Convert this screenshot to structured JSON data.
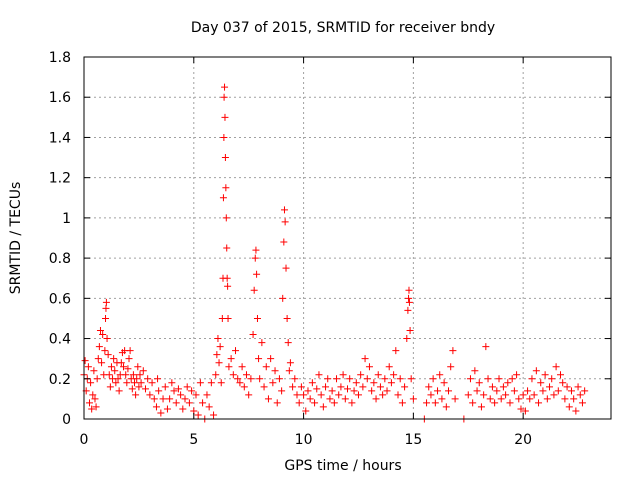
{
  "chart_data": {
    "type": "scatter",
    "title": "Day 037 of 2015, SRMTID for receiver bndy",
    "xlabel": "GPS time / hours",
    "ylabel": "SRMTID / TECUs",
    "xlim": [
      0,
      24
    ],
    "ylim": [
      0,
      1.8
    ],
    "xticks": [
      0,
      5,
      10,
      15,
      20
    ],
    "xtick_labels": [
      "0",
      "5",
      "10",
      "15",
      "20"
    ],
    "yticks": [
      0,
      0.2,
      0.4,
      0.6,
      0.8,
      1,
      1.2,
      1.4,
      1.6,
      1.8
    ],
    "ytick_labels": [
      "0",
      "0.2",
      "0.4",
      "0.6",
      "0.8",
      "1",
      "1.2",
      "1.4",
      "1.6",
      "1.8"
    ],
    "grid": true,
    "marker": "plus",
    "color": "#ff0000",
    "x_coverage_hours": [
      0,
      22.8
    ],
    "series": [
      {
        "name": "SRMTID",
        "points": [
          [
            0.0,
            0.22
          ],
          [
            0.05,
            0.29
          ],
          [
            0.1,
            0.14
          ],
          [
            0.15,
            0.2
          ],
          [
            0.2,
            0.26
          ],
          [
            0.25,
            0.08
          ],
          [
            0.3,
            0.18
          ],
          [
            0.35,
            0.05
          ],
          [
            0.4,
            0.12
          ],
          [
            0.45,
            0.24
          ],
          [
            0.5,
            0.1
          ],
          [
            0.55,
            0.06
          ],
          [
            0.6,
            0.2
          ],
          [
            0.65,
            0.3
          ],
          [
            0.7,
            0.36
          ],
          [
            0.75,
            0.44
          ],
          [
            0.8,
            0.28
          ],
          [
            0.85,
            0.42
          ],
          [
            0.9,
            0.22
          ],
          [
            0.95,
            0.34
          ],
          [
            0.98,
            0.5
          ],
          [
            1.0,
            0.55
          ],
          [
            1.02,
            0.58
          ],
          [
            1.05,
            0.4
          ],
          [
            1.1,
            0.32
          ],
          [
            1.15,
            0.22
          ],
          [
            1.2,
            0.16
          ],
          [
            1.25,
            0.26
          ],
          [
            1.3,
            0.2
          ],
          [
            1.35,
            0.3
          ],
          [
            1.4,
            0.24
          ],
          [
            1.45,
            0.18
          ],
          [
            1.5,
            0.28
          ],
          [
            1.55,
            0.2
          ],
          [
            1.6,
            0.14
          ],
          [
            1.65,
            0.22
          ],
          [
            1.7,
            0.28
          ],
          [
            1.75,
            0.33
          ],
          [
            1.8,
            0.26
          ],
          [
            1.85,
            0.34
          ],
          [
            1.9,
            0.22
          ],
          [
            1.95,
            0.18
          ],
          [
            2.0,
            0.25
          ],
          [
            2.05,
            0.3
          ],
          [
            2.1,
            0.34
          ],
          [
            2.15,
            0.2
          ],
          [
            2.2,
            0.15
          ],
          [
            2.25,
            0.22
          ],
          [
            2.3,
            0.18
          ],
          [
            2.35,
            0.12
          ],
          [
            2.4,
            0.2
          ],
          [
            2.45,
            0.26
          ],
          [
            2.5,
            0.16
          ],
          [
            2.55,
            0.22
          ],
          [
            2.6,
            0.18
          ],
          [
            2.7,
            0.24
          ],
          [
            2.8,
            0.15
          ],
          [
            2.9,
            0.2
          ],
          [
            3.0,
            0.12
          ],
          [
            3.1,
            0.18
          ],
          [
            3.2,
            0.1
          ],
          [
            3.3,
            0.06
          ],
          [
            3.35,
            0.2
          ],
          [
            3.4,
            0.14
          ],
          [
            3.5,
            0.03
          ],
          [
            3.6,
            0.1
          ],
          [
            3.7,
            0.16
          ],
          [
            3.8,
            0.05
          ],
          [
            3.9,
            0.1
          ],
          [
            4.0,
            0.18
          ],
          [
            4.1,
            0.14
          ],
          [
            4.2,
            0.08
          ],
          [
            4.3,
            0.15
          ],
          [
            4.4,
            0.12
          ],
          [
            4.5,
            0.05
          ],
          [
            4.6,
            0.1
          ],
          [
            4.7,
            0.16
          ],
          [
            4.8,
            0.08
          ],
          [
            4.9,
            0.14
          ],
          [
            5.0,
            0.04
          ],
          [
            5.1,
            0.12
          ],
          [
            5.2,
            0.02
          ],
          [
            5.3,
            0.18
          ],
          [
            5.4,
            0.08
          ],
          [
            5.5,
            0.0
          ],
          [
            5.6,
            0.12
          ],
          [
            5.7,
            0.06
          ],
          [
            5.8,
            0.18
          ],
          [
            5.9,
            0.02
          ],
          [
            6.0,
            0.22
          ],
          [
            6.05,
            0.32
          ],
          [
            6.1,
            0.4
          ],
          [
            6.15,
            0.28
          ],
          [
            6.2,
            0.36
          ],
          [
            6.25,
            0.18
          ],
          [
            6.3,
            0.5
          ],
          [
            6.33,
            0.7
          ],
          [
            6.35,
            1.1
          ],
          [
            6.37,
            1.4
          ],
          [
            6.38,
            1.6
          ],
          [
            6.4,
            1.65
          ],
          [
            6.42,
            1.5
          ],
          [
            6.44,
            1.3
          ],
          [
            6.46,
            1.15
          ],
          [
            6.48,
            1.0
          ],
          [
            6.5,
            0.85
          ],
          [
            6.52,
            0.7
          ],
          [
            6.54,
            0.66
          ],
          [
            6.56,
            0.5
          ],
          [
            6.6,
            0.26
          ],
          [
            6.7,
            0.3
          ],
          [
            6.8,
            0.22
          ],
          [
            6.9,
            0.34
          ],
          [
            7.0,
            0.2
          ],
          [
            7.1,
            0.18
          ],
          [
            7.2,
            0.26
          ],
          [
            7.3,
            0.16
          ],
          [
            7.4,
            0.22
          ],
          [
            7.5,
            0.12
          ],
          [
            7.6,
            0.2
          ],
          [
            7.7,
            0.42
          ],
          [
            7.75,
            0.64
          ],
          [
            7.8,
            0.8
          ],
          [
            7.83,
            0.84
          ],
          [
            7.86,
            0.72
          ],
          [
            7.9,
            0.5
          ],
          [
            7.95,
            0.3
          ],
          [
            8.0,
            0.2
          ],
          [
            8.1,
            0.38
          ],
          [
            8.2,
            0.16
          ],
          [
            8.3,
            0.26
          ],
          [
            8.4,
            0.1
          ],
          [
            8.5,
            0.3
          ],
          [
            8.6,
            0.18
          ],
          [
            8.7,
            0.24
          ],
          [
            8.8,
            0.08
          ],
          [
            8.9,
            0.2
          ],
          [
            9.0,
            0.14
          ],
          [
            9.05,
            0.6
          ],
          [
            9.1,
            0.88
          ],
          [
            9.13,
            1.04
          ],
          [
            9.16,
            0.98
          ],
          [
            9.2,
            0.75
          ],
          [
            9.25,
            0.5
          ],
          [
            9.3,
            0.38
          ],
          [
            9.35,
            0.24
          ],
          [
            9.4,
            0.28
          ],
          [
            9.5,
            0.16
          ],
          [
            9.6,
            0.2
          ],
          [
            9.7,
            0.12
          ],
          [
            9.8,
            0.08
          ],
          [
            9.9,
            0.16
          ],
          [
            10.0,
            0.12
          ],
          [
            10.1,
            0.04
          ],
          [
            10.2,
            0.14
          ],
          [
            10.3,
            0.1
          ],
          [
            10.4,
            0.18
          ],
          [
            10.5,
            0.08
          ],
          [
            10.6,
            0.15
          ],
          [
            10.7,
            0.22
          ],
          [
            10.8,
            0.12
          ],
          [
            10.9,
            0.06
          ],
          [
            11.0,
            0.16
          ],
          [
            11.1,
            0.2
          ],
          [
            11.2,
            0.1
          ],
          [
            11.3,
            0.14
          ],
          [
            11.4,
            0.08
          ],
          [
            11.5,
            0.2
          ],
          [
            11.6,
            0.12
          ],
          [
            11.7,
            0.16
          ],
          [
            11.8,
            0.22
          ],
          [
            11.9,
            0.1
          ],
          [
            12.0,
            0.15
          ],
          [
            12.1,
            0.2
          ],
          [
            12.2,
            0.08
          ],
          [
            12.3,
            0.14
          ],
          [
            12.4,
            0.18
          ],
          [
            12.5,
            0.12
          ],
          [
            12.6,
            0.22
          ],
          [
            12.7,
            0.16
          ],
          [
            12.8,
            0.3
          ],
          [
            12.9,
            0.2
          ],
          [
            13.0,
            0.26
          ],
          [
            13.1,
            0.14
          ],
          [
            13.2,
            0.18
          ],
          [
            13.3,
            0.1
          ],
          [
            13.4,
            0.22
          ],
          [
            13.5,
            0.16
          ],
          [
            13.6,
            0.12
          ],
          [
            13.7,
            0.2
          ],
          [
            13.8,
            0.14
          ],
          [
            13.9,
            0.26
          ],
          [
            14.0,
            0.18
          ],
          [
            14.1,
            0.22
          ],
          [
            14.2,
            0.34
          ],
          [
            14.3,
            0.12
          ],
          [
            14.4,
            0.2
          ],
          [
            14.5,
            0.08
          ],
          [
            14.6,
            0.16
          ],
          [
            14.7,
            0.4
          ],
          [
            14.75,
            0.54
          ],
          [
            14.78,
            0.6
          ],
          [
            14.8,
            0.64
          ],
          [
            14.82,
            0.58
          ],
          [
            14.85,
            0.44
          ],
          [
            14.9,
            0.2
          ],
          [
            15.0,
            0.1
          ],
          [
            15.5,
            0.0
          ],
          [
            15.6,
            0.08
          ],
          [
            15.7,
            0.16
          ],
          [
            15.8,
            0.12
          ],
          [
            15.9,
            0.2
          ],
          [
            16.0,
            0.08
          ],
          [
            16.1,
            0.14
          ],
          [
            16.2,
            0.22
          ],
          [
            16.3,
            0.1
          ],
          [
            16.4,
            0.18
          ],
          [
            16.5,
            0.06
          ],
          [
            16.6,
            0.14
          ],
          [
            16.7,
            0.26
          ],
          [
            16.8,
            0.34
          ],
          [
            16.9,
            0.1
          ],
          [
            17.3,
            0.0
          ],
          [
            17.5,
            0.12
          ],
          [
            17.6,
            0.2
          ],
          [
            17.7,
            0.08
          ],
          [
            17.8,
            0.24
          ],
          [
            17.9,
            0.14
          ],
          [
            18.0,
            0.18
          ],
          [
            18.1,
            0.06
          ],
          [
            18.2,
            0.12
          ],
          [
            18.3,
            0.36
          ],
          [
            18.4,
            0.2
          ],
          [
            18.5,
            0.1
          ],
          [
            18.6,
            0.16
          ],
          [
            18.7,
            0.08
          ],
          [
            18.8,
            0.14
          ],
          [
            18.9,
            0.2
          ],
          [
            19.0,
            0.1
          ],
          [
            19.1,
            0.16
          ],
          [
            19.2,
            0.12
          ],
          [
            19.3,
            0.18
          ],
          [
            19.4,
            0.08
          ],
          [
            19.5,
            0.2
          ],
          [
            19.6,
            0.14
          ],
          [
            19.7,
            0.22
          ],
          [
            19.8,
            0.1
          ],
          [
            19.9,
            0.05
          ],
          [
            20.0,
            0.12
          ],
          [
            20.1,
            0.04
          ],
          [
            20.2,
            0.14
          ],
          [
            20.3,
            0.1
          ],
          [
            20.4,
            0.2
          ],
          [
            20.5,
            0.12
          ],
          [
            20.6,
            0.24
          ],
          [
            20.7,
            0.08
          ],
          [
            20.8,
            0.18
          ],
          [
            20.9,
            0.14
          ],
          [
            21.0,
            0.22
          ],
          [
            21.1,
            0.1
          ],
          [
            21.2,
            0.16
          ],
          [
            21.3,
            0.2
          ],
          [
            21.4,
            0.12
          ],
          [
            21.5,
            0.26
          ],
          [
            21.6,
            0.14
          ],
          [
            21.7,
            0.22
          ],
          [
            21.8,
            0.18
          ],
          [
            21.9,
            0.1
          ],
          [
            22.0,
            0.16
          ],
          [
            22.1,
            0.06
          ],
          [
            22.2,
            0.14
          ],
          [
            22.3,
            0.1
          ],
          [
            22.4,
            0.04
          ],
          [
            22.5,
            0.16
          ],
          [
            22.6,
            0.12
          ],
          [
            22.7,
            0.08
          ],
          [
            22.8,
            0.14
          ]
        ]
      }
    ]
  }
}
